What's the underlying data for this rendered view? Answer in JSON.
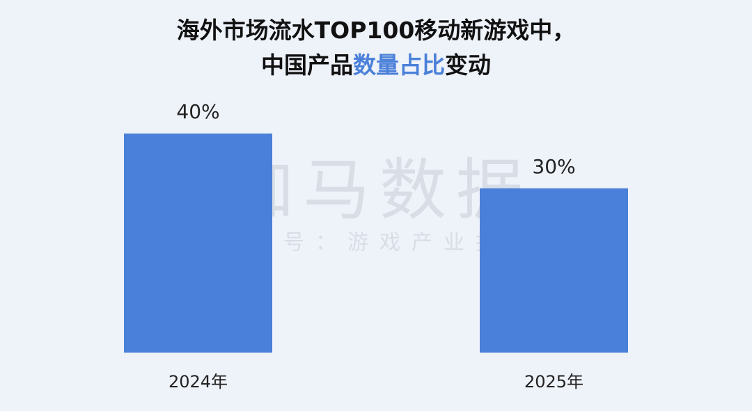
{
  "chart_data": {
    "type": "bar",
    "title_lines": [
      [
        {
          "text": "海外市场流水TOP100移动新游戏中，",
          "color": "#111111"
        }
      ],
      [
        {
          "text": "中国产品",
          "color": "#111111"
        },
        {
          "text": "数量占比",
          "color": "#4a80d9"
        },
        {
          "text": "变动",
          "color": "#111111"
        }
      ]
    ],
    "watermark": [
      "伽马数据",
      "微信号：游戏产业报告"
    ],
    "categories": [
      "2024年",
      "2025年"
    ],
    "values": [
      40,
      30
    ],
    "value_labels": [
      "40%",
      "30%"
    ],
    "color": "#4a80d9",
    "ylim": [
      0,
      40
    ]
  }
}
